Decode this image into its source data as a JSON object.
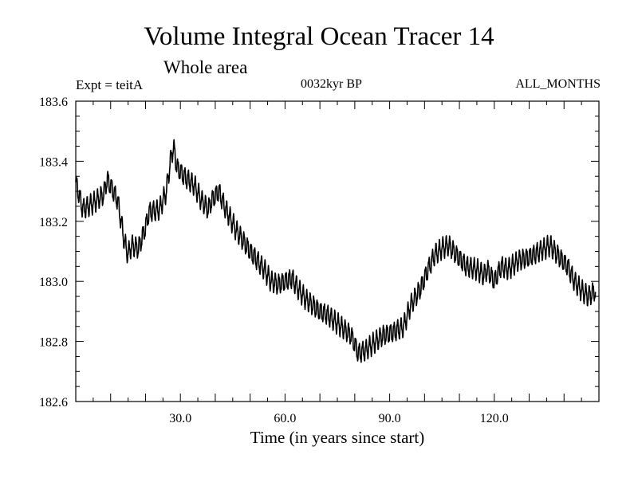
{
  "title": "Volume Integral Ocean Tracer 14",
  "subtitle": "Whole area",
  "meta": {
    "left": "Expt = teitA",
    "center": "0032kyr BP",
    "right": "ALL_MONTHS"
  },
  "chart_data": {
    "type": "line",
    "title": "Volume Integral Ocean Tracer 14",
    "xlabel": "Time (in years since start)",
    "ylabel": "",
    "xlim": [
      0,
      150
    ],
    "ylim": [
      182.6,
      183.6
    ],
    "xticks": [
      30,
      60,
      90,
      120
    ],
    "xtick_labels": [
      "30.0",
      "60.0",
      "90.0",
      "120.0"
    ],
    "yticks": [
      182.6,
      182.8,
      183.0,
      183.2,
      183.4,
      183.6
    ],
    "ytick_labels": [
      "182.6",
      "182.8",
      "183.0",
      "183.2",
      "183.4",
      "183.6"
    ],
    "grid": false,
    "seasonal_amplitude": 0.03,
    "series": [
      {
        "x": [
          0,
          2,
          5,
          8,
          9,
          12,
          14,
          15,
          16,
          18,
          20,
          21,
          24,
          26,
          27,
          28,
          29,
          31,
          34,
          36,
          38,
          39,
          41,
          43,
          46,
          50,
          54,
          56,
          58,
          60,
          62,
          64,
          66,
          68,
          70,
          72,
          74,
          76,
          79,
          81,
          83,
          86,
          88,
          91,
          94,
          96,
          99,
          101,
          103,
          105,
          107,
          109,
          112,
          115,
          117,
          118,
          120,
          122,
          124,
          127,
          130,
          133,
          136,
          138,
          141,
          143,
          145,
          147,
          149
        ],
        "y": [
          183.33,
          183.24,
          183.26,
          183.29,
          183.34,
          183.27,
          183.13,
          183.09,
          183.12,
          183.11,
          183.18,
          183.23,
          183.24,
          183.3,
          183.39,
          183.45,
          183.38,
          183.35,
          183.32,
          183.27,
          183.24,
          183.27,
          183.3,
          183.24,
          183.17,
          183.1,
          183.04,
          183.0,
          182.99,
          183.0,
          183.01,
          182.97,
          182.94,
          182.92,
          182.9,
          182.89,
          182.87,
          182.85,
          182.82,
          182.76,
          182.77,
          182.8,
          182.82,
          182.83,
          182.85,
          182.92,
          182.98,
          183.04,
          183.09,
          183.11,
          183.12,
          183.09,
          183.05,
          183.04,
          183.02,
          183.04,
          183.0,
          183.05,
          183.04,
          183.07,
          183.08,
          183.1,
          183.12,
          183.09,
          183.05,
          183.0,
          182.97,
          182.95,
          182.97
        ]
      }
    ]
  }
}
